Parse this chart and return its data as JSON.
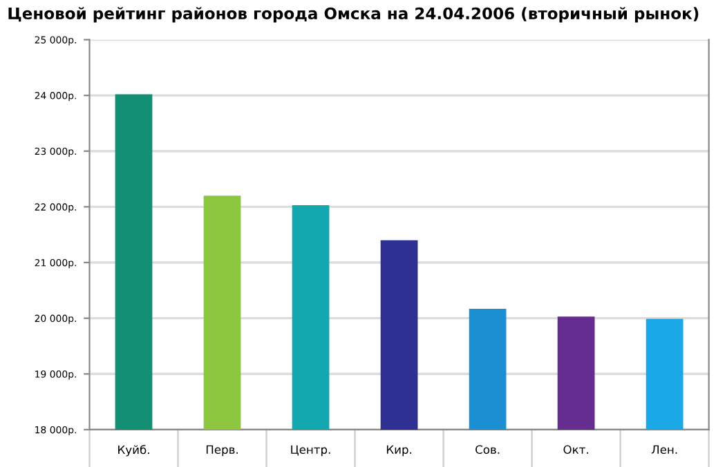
{
  "chart_data": {
    "type": "bar",
    "title": "Ценовой рейтинг районов города Омска на 24.04.2006 (вторичный рынок)",
    "categories": [
      "Куйб.",
      "Перв.",
      "Центр.",
      "Кир.",
      "Сов.",
      "Окт.",
      "Лен."
    ],
    "values": [
      24020,
      22200,
      22030,
      21400,
      20170,
      20030,
      19990
    ],
    "colors": [
      "#139074",
      "#8dc63f",
      "#13a8b0",
      "#2e3192",
      "#1b8fd2",
      "#662d91",
      "#1ba8e6"
    ],
    "ylim": [
      18000,
      25000
    ],
    "yticks": [
      {
        "value": 18000,
        "label": "18 000р."
      },
      {
        "value": 19000,
        "label": "19 000р."
      },
      {
        "value": 20000,
        "label": "20 000р."
      },
      {
        "value": 21000,
        "label": "21 000р."
      },
      {
        "value": 22000,
        "label": "22 000р."
      },
      {
        "value": 23000,
        "label": "23 000р."
      },
      {
        "value": 24000,
        "label": "24 000р."
      },
      {
        "value": 25000,
        "label": "25 000р."
      }
    ],
    "grid": "y"
  }
}
